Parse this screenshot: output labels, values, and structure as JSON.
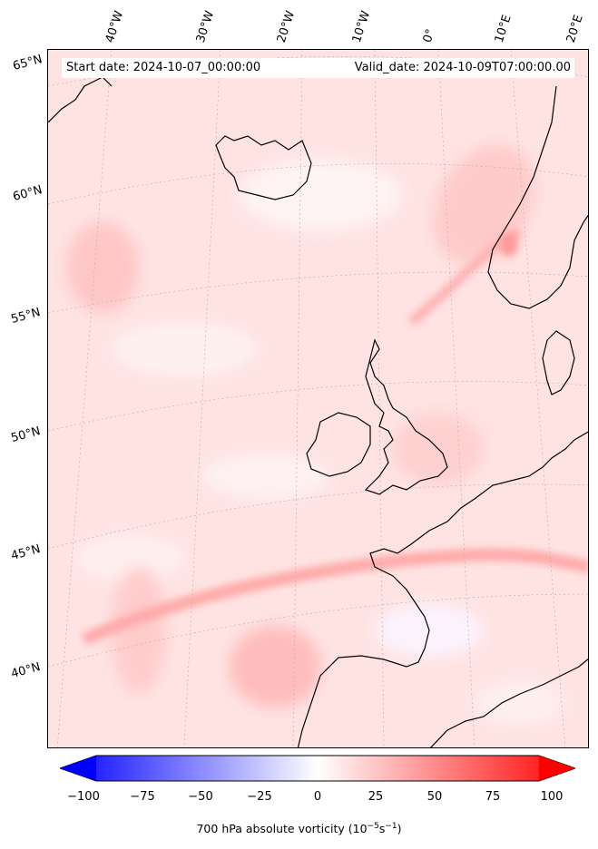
{
  "header": {
    "start_date": "Start date: 2024-10-07_00:00:00",
    "valid_date": "Valid_date: 2024-10-09T07:00:00.00"
  },
  "map": {
    "lon_labels": [
      "40°W",
      "30°W",
      "20°W",
      "10°W",
      "0°",
      "10°E",
      "20°E"
    ],
    "lat_labels": [
      "65°N",
      "60°N",
      "55°N",
      "50°N",
      "45°N",
      "40°N"
    ],
    "field_color": "#ffe1e1",
    "coast_color": "#000000"
  },
  "colorbar": {
    "ticks": [
      "−100",
      "−75",
      "−50",
      "−25",
      "0",
      "25",
      "50",
      "75",
      "100"
    ],
    "label_prefix": "700 hPa absolute vorticity (10",
    "label_exp1": "−5",
    "label_mid": "s",
    "label_exp2": "−1",
    "label_suffix": ")",
    "min_color": "#0000ff",
    "mid_color": "#ffffff",
    "max_color": "#ff0000",
    "range": [
      -100,
      100
    ]
  }
}
